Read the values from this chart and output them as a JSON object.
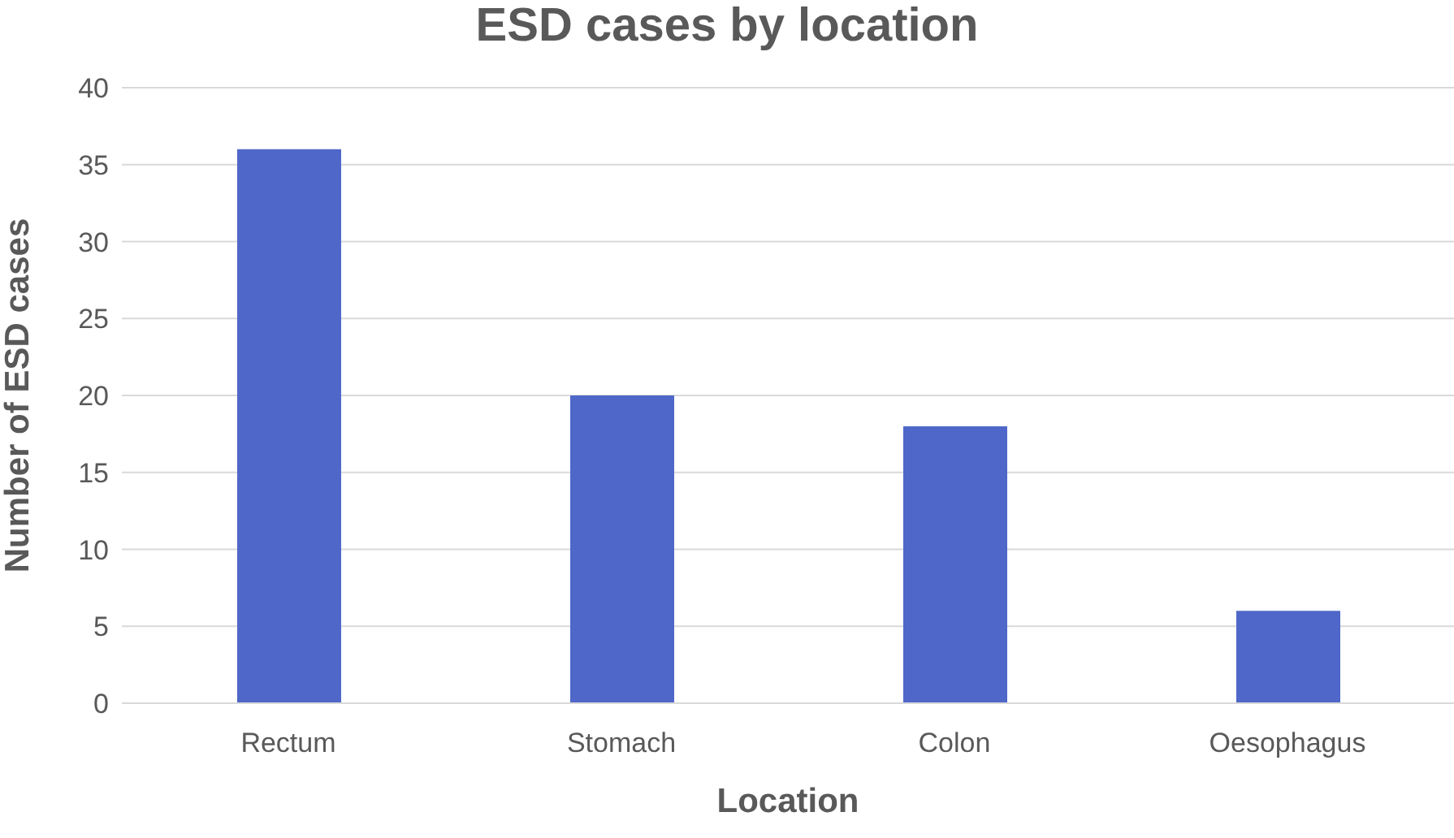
{
  "chart_data": {
    "type": "bar",
    "title": "ESD cases by location",
    "xlabel": "Location",
    "ylabel": "Number of ESD cases",
    "categories": [
      "Rectum",
      "Stomach",
      "Colon",
      "Oesophagus"
    ],
    "values": [
      36,
      20,
      18,
      6
    ],
    "color": "#4e67c8",
    "ylim": [
      0,
      40
    ],
    "yticks": [
      0,
      5,
      10,
      15,
      20,
      25,
      30,
      35,
      40
    ],
    "grid": "y"
  }
}
